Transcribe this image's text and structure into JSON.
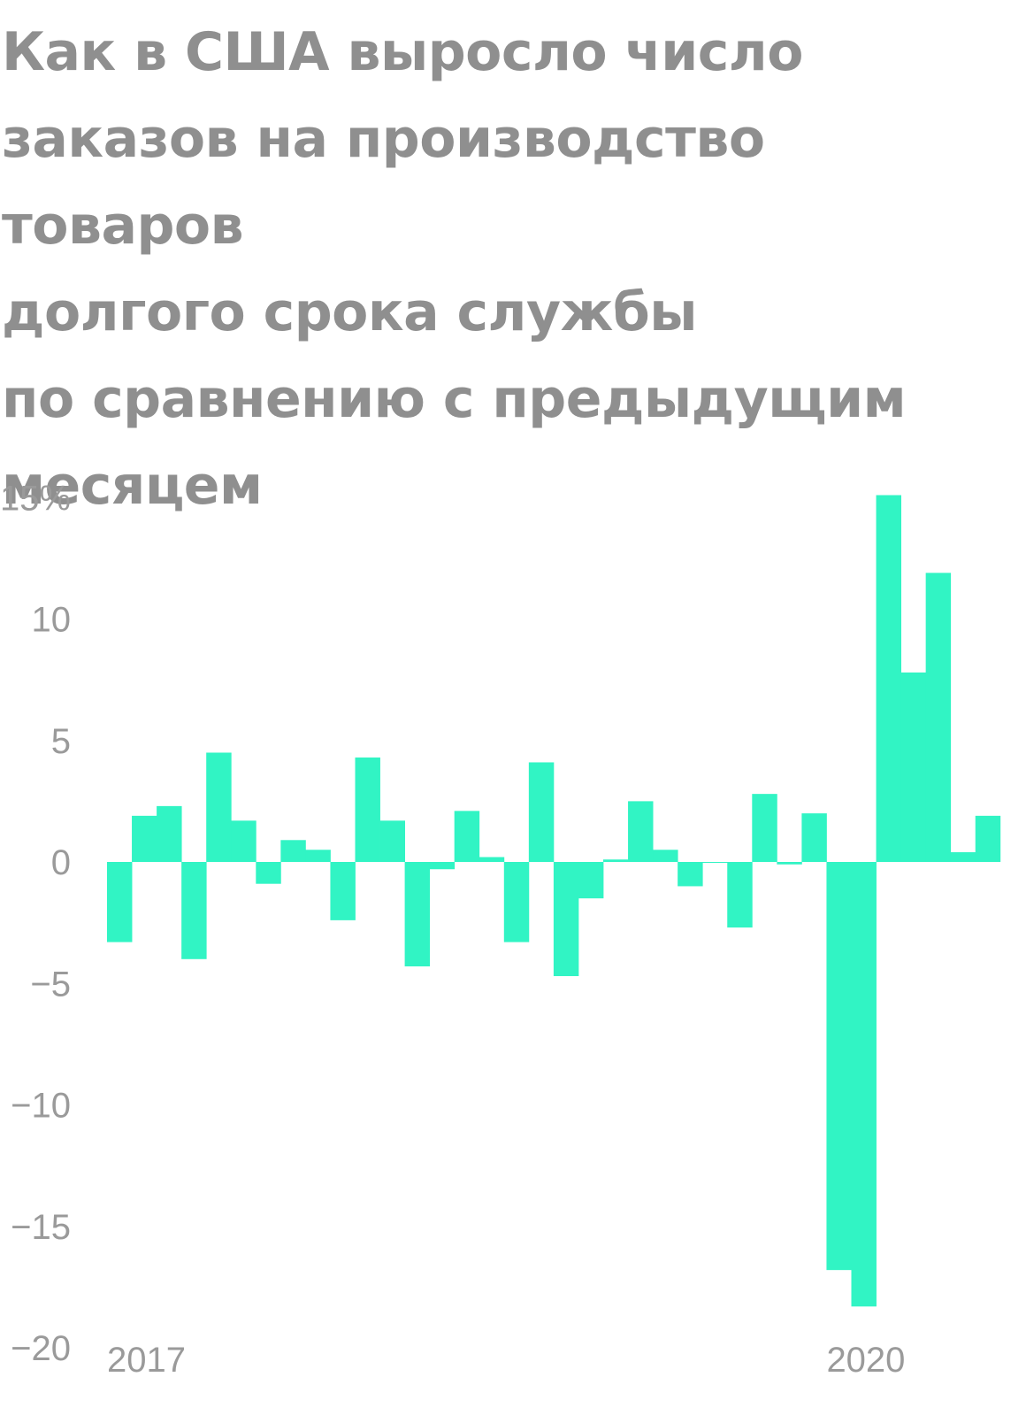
{
  "chart_data": {
    "type": "bar",
    "title": "Как в США выросло число\nзаказов на производство товаров\nдолгого срока службы\nпо сравнению с предыдущим\nмесяцем",
    "xlabel": "",
    "ylabel": "",
    "ylim": [
      -20,
      15
    ],
    "yticks": [
      {
        "value": 15,
        "label": "15%"
      },
      {
        "value": 10,
        "label": "10"
      },
      {
        "value": 5,
        "label": "5"
      },
      {
        "value": 0,
        "label": "0"
      },
      {
        "value": -5,
        "label": "−5"
      },
      {
        "value": -10,
        "label": "−10"
      },
      {
        "value": -15,
        "label": "−15"
      },
      {
        "value": -20,
        "label": "−20"
      }
    ],
    "xticks": [
      {
        "index": 0,
        "label": "2017"
      },
      {
        "index": 29,
        "label": "2020"
      }
    ],
    "grid": false,
    "legend": "none",
    "bar_color": "#31f4c4",
    "values": [
      -3.3,
      1.9,
      2.3,
      -4.0,
      4.5,
      1.7,
      -0.9,
      0.9,
      0.5,
      -2.4,
      4.3,
      1.7,
      -4.3,
      -0.3,
      2.1,
      0.2,
      -3.3,
      4.1,
      -4.7,
      -1.5,
      0.1,
      2.5,
      0.5,
      -1.0,
      0.0,
      -2.7,
      2.8,
      -0.1,
      2.0,
      -16.8,
      -18.3,
      15.1,
      7.8,
      11.9,
      0.4,
      1.9
    ]
  }
}
